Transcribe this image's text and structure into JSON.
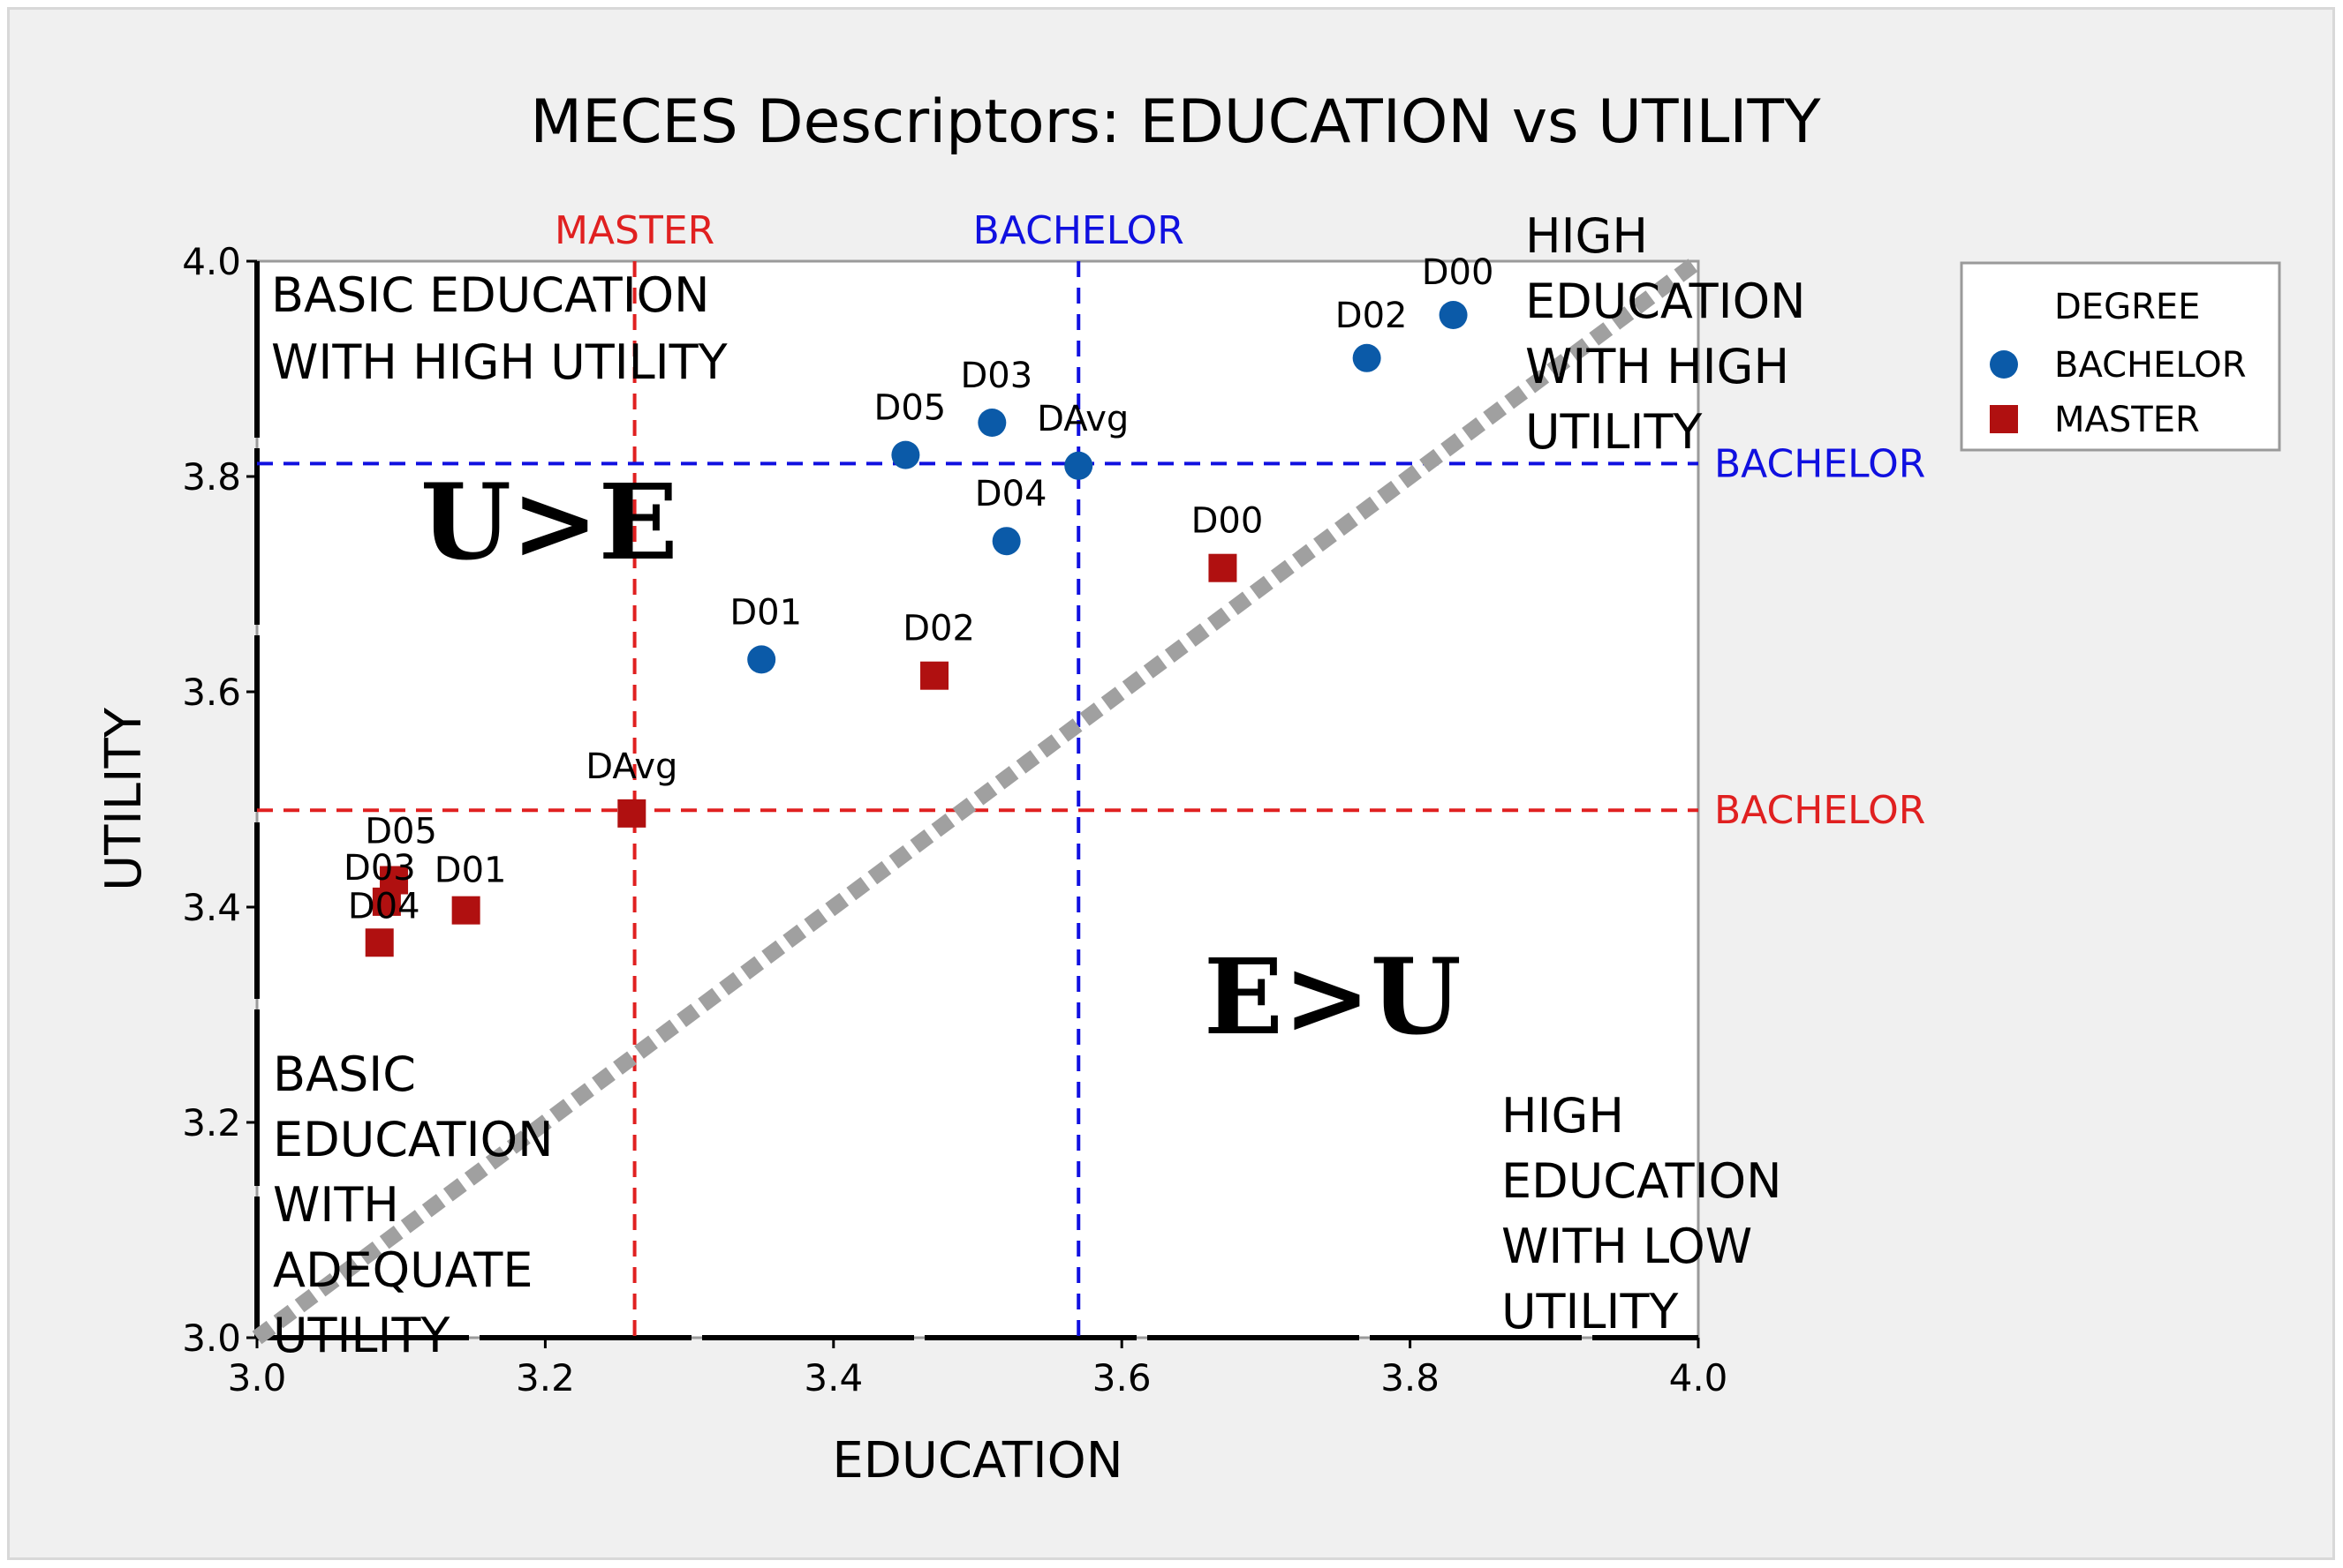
{
  "chart_data": {
    "type": "scatter",
    "title": "MECES Descriptors: EDUCATION vs UTILITY",
    "xlabel": "EDUCATION",
    "ylabel": "UTILITY",
    "xlim": [
      3.0,
      4.0
    ],
    "ylim": [
      3.0,
      4.0
    ],
    "x_ticks": [
      "3.0",
      "3.2",
      "3.4",
      "3.6",
      "3.8",
      "4.0"
    ],
    "y_ticks": [
      "3.0",
      "3.2",
      "3.4",
      "3.6",
      "3.8",
      "4.0"
    ],
    "grid": false,
    "legend": {
      "title": "DEGREE",
      "placement": "top-right",
      "entries": [
        {
          "label": "BACHELOR",
          "marker": "circle",
          "color": "#0b5aa8"
        },
        {
          "label": "MASTER",
          "marker": "square",
          "color": "#b01010"
        }
      ]
    },
    "series": [
      {
        "name": "BACHELOR",
        "marker": "circle",
        "color": "#0b5aa8",
        "points": [
          {
            "label": "D00",
            "x": 3.83,
            "y": 3.95
          },
          {
            "label": "D02",
            "x": 3.77,
            "y": 3.91
          },
          {
            "label": "D03",
            "x": 3.51,
            "y": 3.85
          },
          {
            "label": "D05",
            "x": 3.45,
            "y": 3.82
          },
          {
            "label": "DAvg",
            "x": 3.57,
            "y": 3.81
          },
          {
            "label": "D04",
            "x": 3.52,
            "y": 3.74
          },
          {
            "label": "D01",
            "x": 3.35,
            "y": 3.63
          }
        ]
      },
      {
        "name": "MASTER",
        "marker": "square",
        "color": "#b01010",
        "points": [
          {
            "label": "D00",
            "x": 3.67,
            "y": 3.715
          },
          {
            "label": "D02",
            "x": 3.47,
            "y": 3.615
          },
          {
            "label": "DAvg",
            "x": 3.26,
            "y": 3.487
          },
          {
            "label": "D05",
            "x": 3.095,
            "y": 3.425
          },
          {
            "label": "D03",
            "x": 3.09,
            "y": 3.405
          },
          {
            "label": "D01",
            "x": 3.145,
            "y": 3.397
          },
          {
            "label": "D04",
            "x": 3.085,
            "y": 3.367
          }
        ]
      }
    ],
    "reference_lines": [
      {
        "orientation": "vertical",
        "value": 3.262,
        "label": "MASTER",
        "color": "#e02020"
      },
      {
        "orientation": "vertical",
        "value": 3.57,
        "label": "BACHELOR",
        "color": "#1010e0"
      },
      {
        "orientation": "horizontal",
        "value": 3.812,
        "label": "BACHELOR",
        "color": "#1010e0"
      },
      {
        "orientation": "horizontal",
        "value": 3.49,
        "label": "BACHELOR",
        "color": "#e02020"
      }
    ],
    "diagonal": {
      "from": [
        3.0,
        3.0
      ],
      "to": [
        4.0,
        4.0
      ],
      "color": "#a0a0a0"
    },
    "annotations": {
      "top_left": [
        "BASIC EDUCATION",
        "WITH HIGH UTILITY"
      ],
      "top_right": [
        "HIGH",
        "EDUCATION",
        "WITH HIGH",
        "UTILITY"
      ],
      "bottom_left": [
        "BASIC",
        "EDUCATION",
        "WITH",
        "ADEQUATE",
        "UTILITY"
      ],
      "bottom_right": [
        "HIGH",
        "EDUCATION",
        "WITH LOW",
        "UTILITY"
      ],
      "upper_region": "U>E",
      "lower_region": "E>U"
    }
  }
}
